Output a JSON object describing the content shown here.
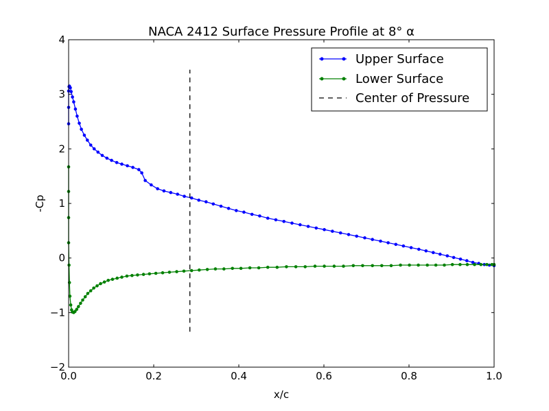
{
  "chart_data": {
    "type": "line",
    "title": "NACA 2412 Surface Pressure Profile at 8° α",
    "xlabel": "x/c",
    "ylabel": "-Cp",
    "xlim": [
      0.0,
      1.0
    ],
    "ylim": [
      -2,
      4
    ],
    "x_ticks": [
      "0.0",
      "0.2",
      "0.4",
      "0.6",
      "0.8",
      "1.0"
    ],
    "y_ticks": [
      "−2",
      "−1",
      "0",
      "1",
      "2",
      "3",
      "4"
    ],
    "grid": false,
    "legend_position": "top-right",
    "series": [
      {
        "name": "Upper Surface",
        "color": "#0000ff",
        "marker": "dot",
        "x": [
          0.0,
          0.0,
          0.0,
          0.001,
          0.002,
          0.004,
          0.006,
          0.009,
          0.012,
          0.016,
          0.02,
          0.025,
          0.03,
          0.037,
          0.044,
          0.052,
          0.06,
          0.069,
          0.079,
          0.09,
          0.101,
          0.113,
          0.125,
          0.138,
          0.151,
          0.165,
          0.172,
          0.18,
          0.194,
          0.209,
          0.224,
          0.24,
          0.256,
          0.272,
          0.289,
          0.306,
          0.323,
          0.34,
          0.358,
          0.376,
          0.394,
          0.412,
          0.431,
          0.449,
          0.468,
          0.487,
          0.506,
          0.525,
          0.544,
          0.563,
          0.582,
          0.601,
          0.62,
          0.639,
          0.658,
          0.677,
          0.696,
          0.714,
          0.733,
          0.751,
          0.769,
          0.787,
          0.805,
          0.823,
          0.84,
          0.857,
          0.873,
          0.89,
          0.905,
          0.921,
          0.936,
          0.95,
          0.964,
          0.977,
          0.989,
          1.0
        ],
        "y": [
          2.46,
          2.76,
          3.06,
          3.14,
          3.15,
          3.12,
          3.05,
          2.95,
          2.86,
          2.73,
          2.6,
          2.47,
          2.36,
          2.25,
          2.16,
          2.07,
          2.0,
          1.94,
          1.88,
          1.83,
          1.79,
          1.75,
          1.72,
          1.69,
          1.66,
          1.62,
          1.56,
          1.42,
          1.34,
          1.27,
          1.23,
          1.2,
          1.17,
          1.13,
          1.1,
          1.06,
          1.03,
          0.99,
          0.95,
          0.91,
          0.87,
          0.84,
          0.8,
          0.77,
          0.73,
          0.7,
          0.67,
          0.64,
          0.61,
          0.58,
          0.55,
          0.52,
          0.49,
          0.46,
          0.43,
          0.4,
          0.37,
          0.34,
          0.31,
          0.28,
          0.25,
          0.22,
          0.19,
          0.16,
          0.13,
          0.1,
          0.07,
          0.04,
          0.01,
          -0.02,
          -0.05,
          -0.08,
          -0.1,
          -0.12,
          -0.13,
          -0.14
        ]
      },
      {
        "name": "Lower Surface",
        "color": "#008000",
        "marker": "dot",
        "x": [
          0.0,
          0.0,
          0.0,
          0.0,
          0.001,
          0.002,
          0.003,
          0.005,
          0.007,
          0.009,
          0.012,
          0.015,
          0.019,
          0.023,
          0.028,
          0.033,
          0.039,
          0.045,
          0.052,
          0.059,
          0.067,
          0.075,
          0.084,
          0.093,
          0.103,
          0.114,
          0.125,
          0.137,
          0.149,
          0.162,
          0.176,
          0.19,
          0.205,
          0.221,
          0.237,
          0.254,
          0.271,
          0.289,
          0.307,
          0.326,
          0.345,
          0.365,
          0.385,
          0.405,
          0.426,
          0.447,
          0.468,
          0.49,
          0.512,
          0.534,
          0.556,
          0.579,
          0.601,
          0.624,
          0.646,
          0.669,
          0.691,
          0.714,
          0.736,
          0.758,
          0.78,
          0.801,
          0.822,
          0.843,
          0.863,
          0.883,
          0.902,
          0.92,
          0.937,
          0.954,
          0.969,
          0.983,
          0.995,
          1.0
        ],
        "y": [
          1.67,
          1.22,
          0.74,
          0.28,
          -0.13,
          -0.45,
          -0.7,
          -0.86,
          -0.95,
          -0.99,
          -1.0,
          -0.98,
          -0.94,
          -0.89,
          -0.83,
          -0.77,
          -0.71,
          -0.65,
          -0.6,
          -0.55,
          -0.51,
          -0.47,
          -0.44,
          -0.41,
          -0.39,
          -0.37,
          -0.35,
          -0.33,
          -0.32,
          -0.31,
          -0.3,
          -0.29,
          -0.28,
          -0.27,
          -0.26,
          -0.25,
          -0.24,
          -0.23,
          -0.22,
          -0.21,
          -0.2,
          -0.2,
          -0.19,
          -0.19,
          -0.18,
          -0.18,
          -0.17,
          -0.17,
          -0.16,
          -0.16,
          -0.16,
          -0.15,
          -0.15,
          -0.15,
          -0.15,
          -0.14,
          -0.14,
          -0.14,
          -0.14,
          -0.14,
          -0.13,
          -0.13,
          -0.13,
          -0.13,
          -0.13,
          -0.13,
          -0.12,
          -0.12,
          -0.12,
          -0.12,
          -0.12,
          -0.12,
          -0.12,
          -0.12
        ]
      },
      {
        "name": "Center of Pressure",
        "color": "#000000",
        "style": "dashed",
        "x": [
          0.285,
          0.285
        ],
        "y": [
          -1.35,
          3.45
        ]
      }
    ]
  }
}
